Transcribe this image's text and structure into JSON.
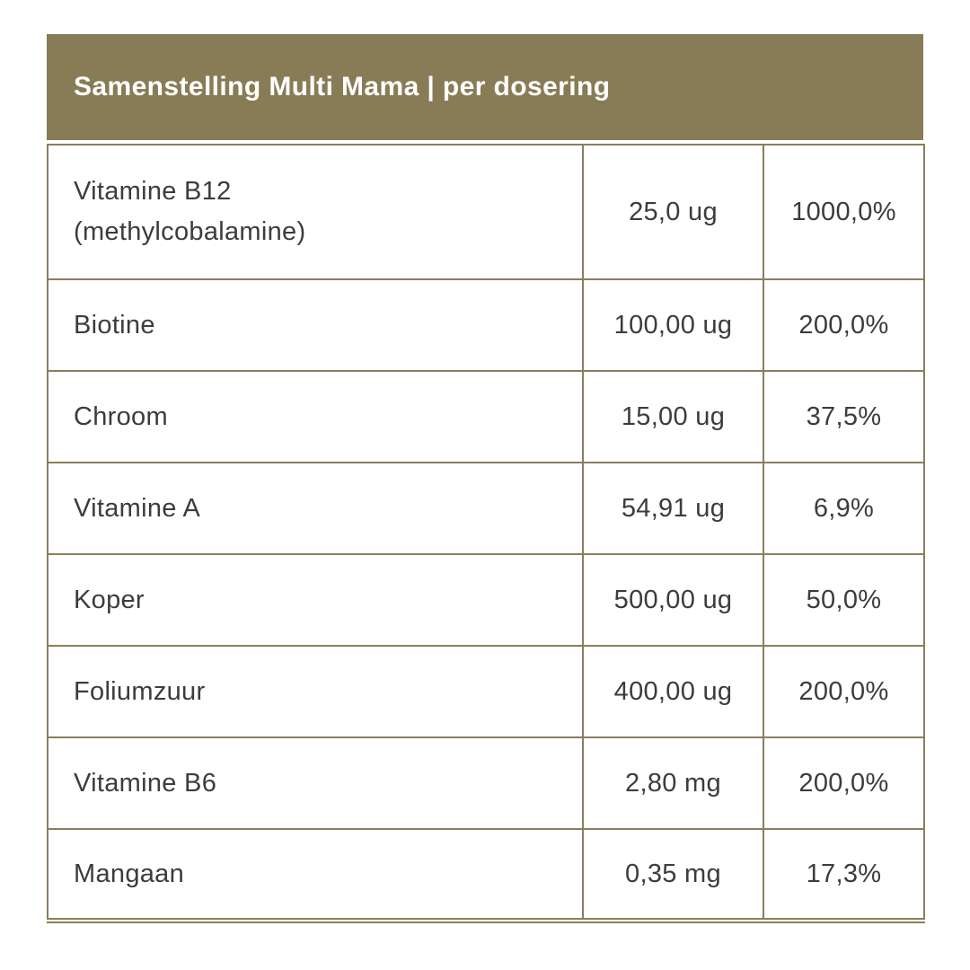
{
  "header": {
    "title": "Samenstelling Multi Mama | per dosering"
  },
  "table": {
    "rows": [
      {
        "name": "Vitamine B12\n(methylcobalamine)",
        "amount": "25,0 ug",
        "percent": "1000,0%"
      },
      {
        "name": "Biotine",
        "amount": "100,00 ug",
        "percent": "200,0%"
      },
      {
        "name": "Chroom",
        "amount": "15,00 ug",
        "percent": "37,5%"
      },
      {
        "name": "Vitamine A",
        "amount": "54,91 ug",
        "percent": "6,9%"
      },
      {
        "name": "Koper",
        "amount": "500,00 ug",
        "percent": "50,0%"
      },
      {
        "name": "Foliumzuur",
        "amount": "400,00 ug",
        "percent": "200,0%"
      },
      {
        "name": "Vitamine B6",
        "amount": "2,80 mg",
        "percent": "200,0%"
      },
      {
        "name": "Mangaan",
        "amount": "0,35 mg",
        "percent": "17,3%"
      }
    ]
  },
  "colors": {
    "header_bg": "#877C56",
    "header_text": "#FFFFFF",
    "border": "#8A7F5B",
    "text": "#3C3C3C",
    "row_bg": "#FFFFFF"
  }
}
